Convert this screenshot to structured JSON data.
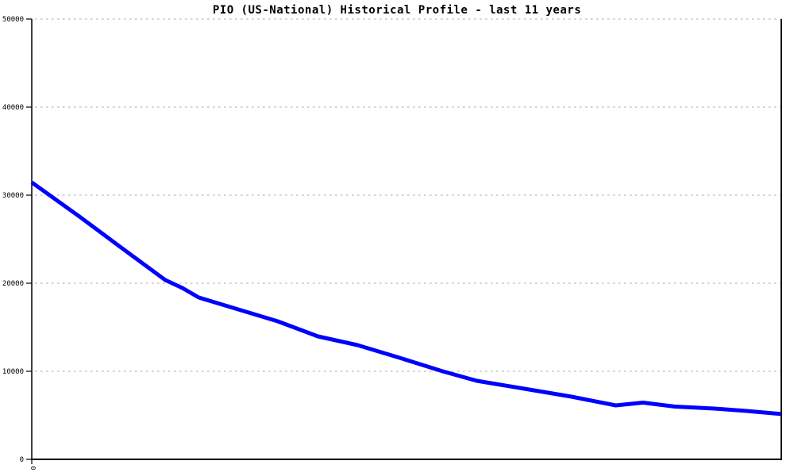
{
  "colors": {
    "background": "#ffffff",
    "axis": "#000000",
    "grid": "#b9b9b9",
    "series_line": "#0000ff",
    "text": "#000000"
  },
  "chart_data": {
    "type": "line",
    "title": "PIO (US-National) Historical Profile - last 11 years",
    "xlabel": "",
    "ylabel": "",
    "grid": "horizontal dotted gridlines at each y tick",
    "legend_position": "none",
    "x_axis": {
      "range": [
        0,
        11
      ],
      "unit": "years (relative offset, last 11 years)",
      "tick_labels": [
        {
          "pos": 0,
          "label": "0",
          "rotation_deg": 90
        }
      ]
    },
    "y_axis": {
      "range": [
        0,
        50000
      ],
      "tick_values": [
        0,
        10000,
        20000,
        30000,
        40000,
        50000
      ],
      "tick_labels": [
        "0",
        "10000",
        "20000",
        "30000",
        "40000",
        "50000"
      ]
    },
    "series": [
      {
        "name": "PIO (US-National)",
        "color": "#0000ff",
        "x_years": [
          0,
          0.7,
          1.28,
          1.96,
          2.21,
          2.45,
          3.03,
          3.61,
          4.2,
          4.78,
          5.36,
          6.03,
          6.53,
          7.23,
          7.92,
          8.57,
          8.97,
          9.44,
          10.02,
          10.49,
          11.0
        ],
        "values": [
          31450,
          27570,
          24230,
          20360,
          19460,
          18380,
          17030,
          15680,
          13960,
          12970,
          11620,
          10000,
          8920,
          8020,
          7120,
          6130,
          6440,
          5990,
          5770,
          5500,
          5140
        ]
      }
    ]
  }
}
